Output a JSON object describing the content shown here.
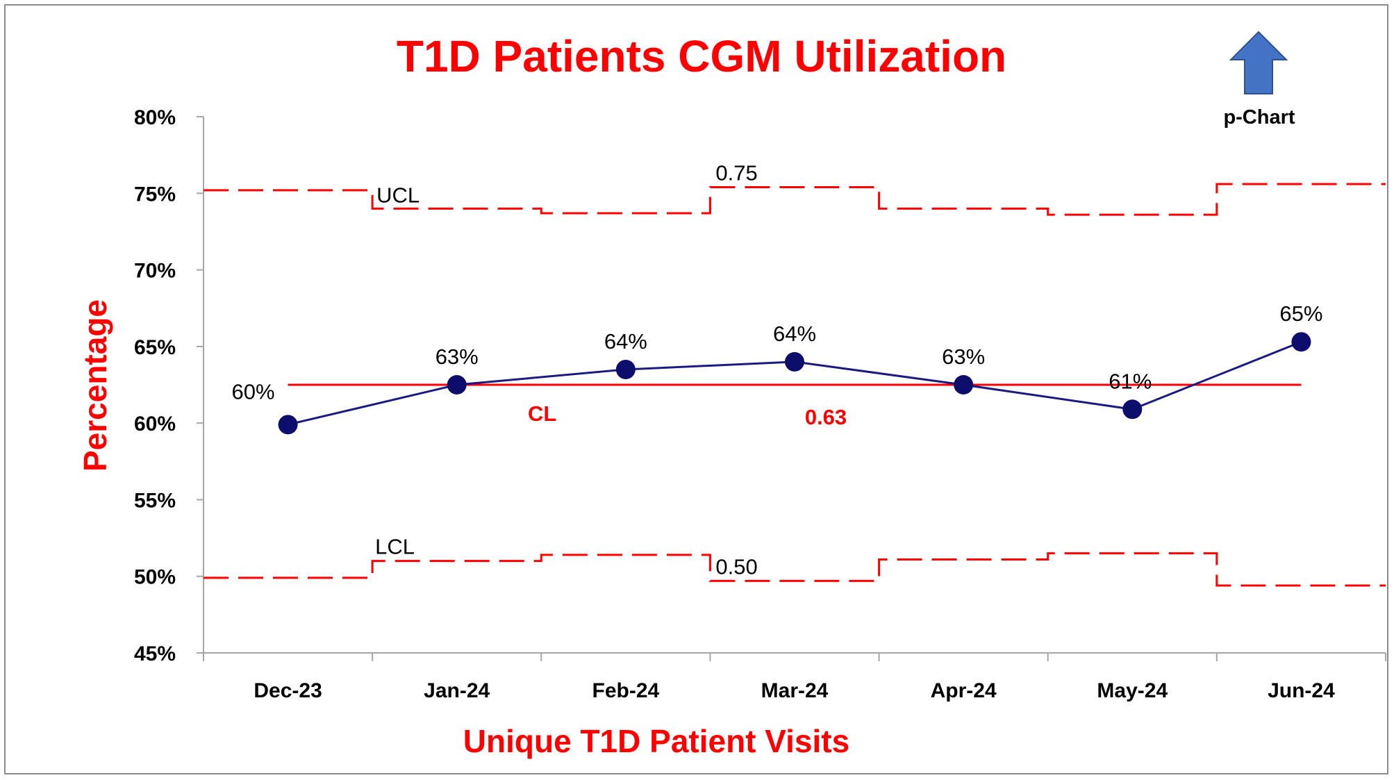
{
  "colors": {
    "title": "#ff0000",
    "axis_title": "#ff0000",
    "series": "#1a1a80",
    "marker": "#0d0d6b",
    "limits": "#ff0000",
    "center": "#ff0000",
    "arrow_fill": "#4472c4",
    "arrow_stroke": "#2f528f",
    "axis": "#a6a6a6"
  },
  "badge": {
    "icon": "up-arrow-icon",
    "label": "p-Chart"
  },
  "chart_data": {
    "type": "line",
    "title": "T1D Patients CGM Utilization",
    "xlabel": "Unique T1D Patient Visits",
    "ylabel": "Percentage",
    "ylim": [
      0.45,
      0.8
    ],
    "yticks": [
      0.45,
      0.5,
      0.55,
      0.6,
      0.65,
      0.7,
      0.75,
      0.8
    ],
    "ytick_labels": [
      "45%",
      "50%",
      "55%",
      "60%",
      "65%",
      "70%",
      "75%",
      "80%"
    ],
    "categories": [
      "Dec-23",
      "Jan-24",
      "Feb-24",
      "Mar-24",
      "Apr-24",
      "May-24",
      "Jun-24"
    ],
    "grid": false,
    "series": [
      {
        "values": [
          0.599,
          0.625,
          0.635,
          0.64,
          0.625,
          0.609,
          0.653
        ],
        "data_labels": [
          "60%",
          "63%",
          "64%",
          "64%",
          "63%",
          "61%",
          "65%"
        ]
      },
      {
        "name": "UCL",
        "values": [
          0.752,
          0.74,
          0.737,
          0.754,
          0.74,
          0.736,
          0.756
        ]
      },
      {
        "name": "LCL",
        "values": [
          0.499,
          0.51,
          0.514,
          0.497,
          0.511,
          0.515,
          0.494
        ]
      },
      {
        "name": "CL",
        "values": [
          0.625,
          0.625,
          0.625,
          0.625,
          0.625,
          0.625,
          0.625
        ]
      }
    ],
    "annotations": {
      "ucl_label": "UCL",
      "ucl_value": "0.75",
      "lcl_label": "LCL",
      "lcl_value": "0.50",
      "cl_label": "CL",
      "cl_value": "0.63"
    }
  }
}
